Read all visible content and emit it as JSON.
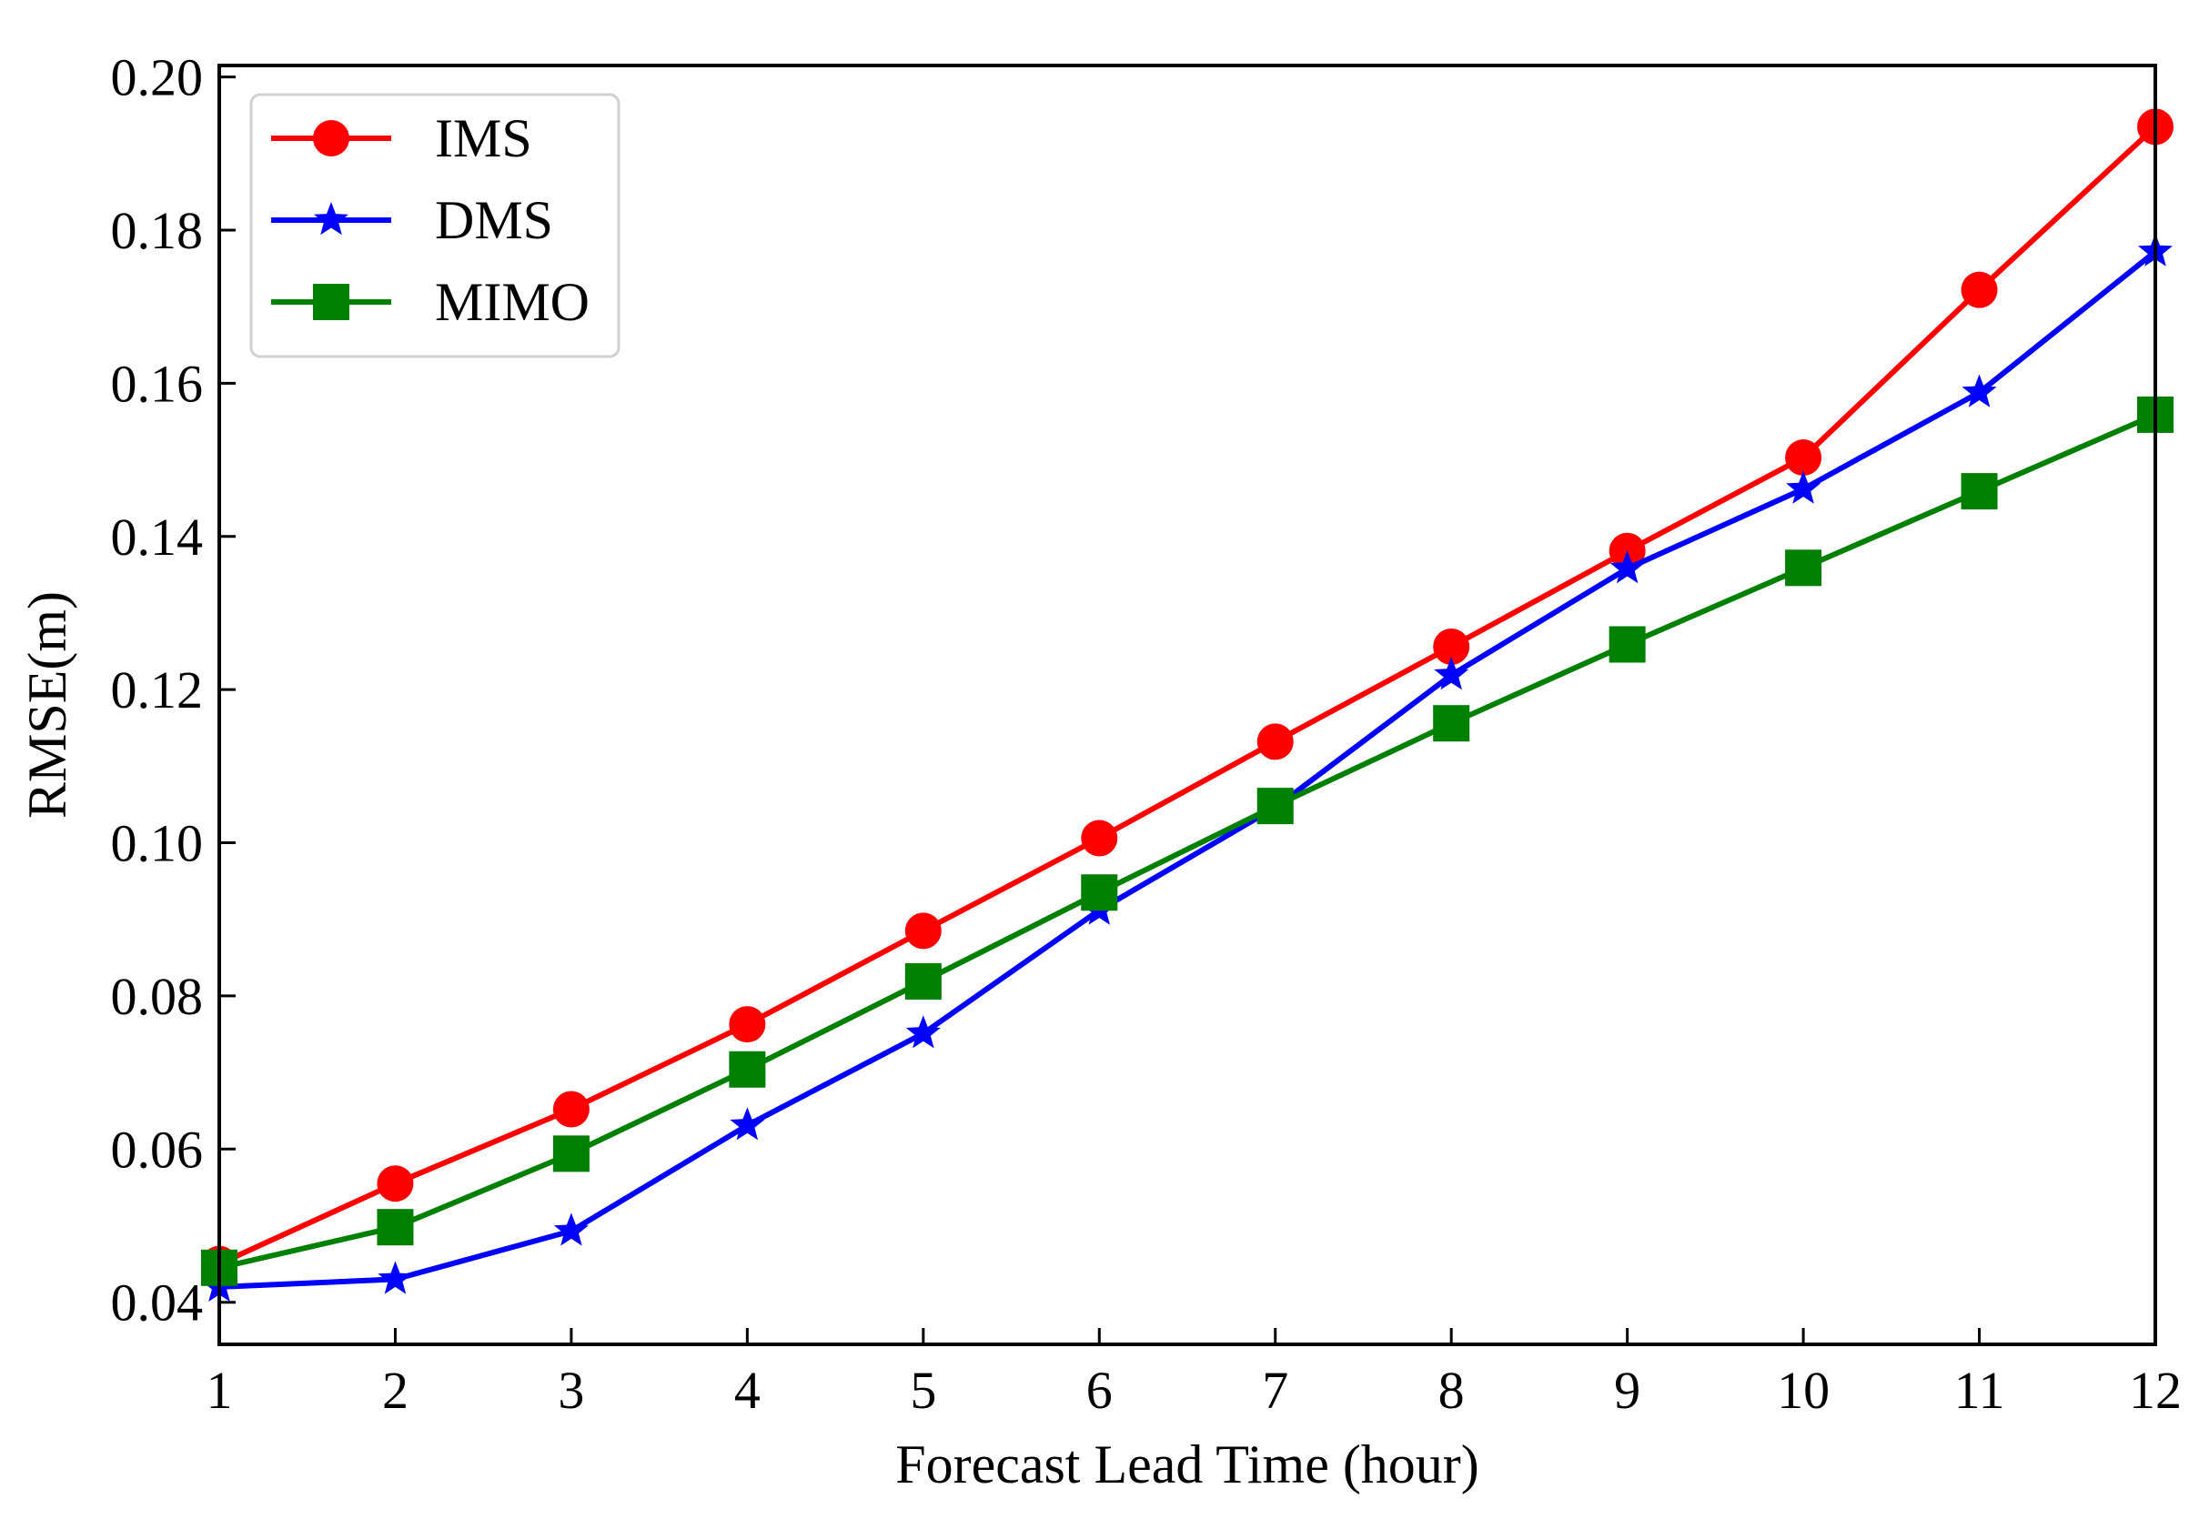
{
  "chart_data": {
    "type": "line",
    "title": "",
    "xlabel": "Forecast Lead Time (hour)",
    "ylabel": "RMSE(m)",
    "x": [
      1,
      2,
      3,
      4,
      5,
      6,
      7,
      8,
      9,
      10,
      11,
      12
    ],
    "xticks": [
      "1",
      "2",
      "3",
      "4",
      "5",
      "6",
      "7",
      "8",
      "9",
      "10",
      "11",
      "12"
    ],
    "xlim": [
      1,
      12
    ],
    "ylim": [
      0.0345,
      0.2015
    ],
    "yticks": [
      0.04,
      0.06,
      0.08,
      0.1,
      0.12,
      0.14,
      0.16,
      0.18,
      0.2
    ],
    "ytick_labels": [
      "0.04",
      "0.06",
      "0.08",
      "0.10",
      "0.12",
      "0.14",
      "0.16",
      "0.18",
      "0.20"
    ],
    "grid": false,
    "legend_position": "top-left",
    "series": [
      {
        "name": "IMS",
        "color": "#ff0000",
        "marker": "circle",
        "values": [
          0.045,
          0.0555,
          0.0652,
          0.0763,
          0.0885,
          0.1006,
          0.1132,
          0.1256,
          0.1381,
          0.1503,
          0.1722,
          0.1935
        ]
      },
      {
        "name": "DMS",
        "color": "#0000ff",
        "marker": "star",
        "values": [
          0.042,
          0.043,
          0.0493,
          0.0631,
          0.0751,
          0.0912,
          0.1046,
          0.1219,
          0.1358,
          0.1462,
          0.1588,
          0.1772
        ]
      },
      {
        "name": "MIMO",
        "color": "#008000",
        "marker": "square",
        "values": [
          0.0445,
          0.0498,
          0.0594,
          0.0704,
          0.0819,
          0.0935,
          0.1048,
          0.1156,
          0.1259,
          0.1359,
          0.1459,
          0.1559
        ]
      }
    ]
  }
}
